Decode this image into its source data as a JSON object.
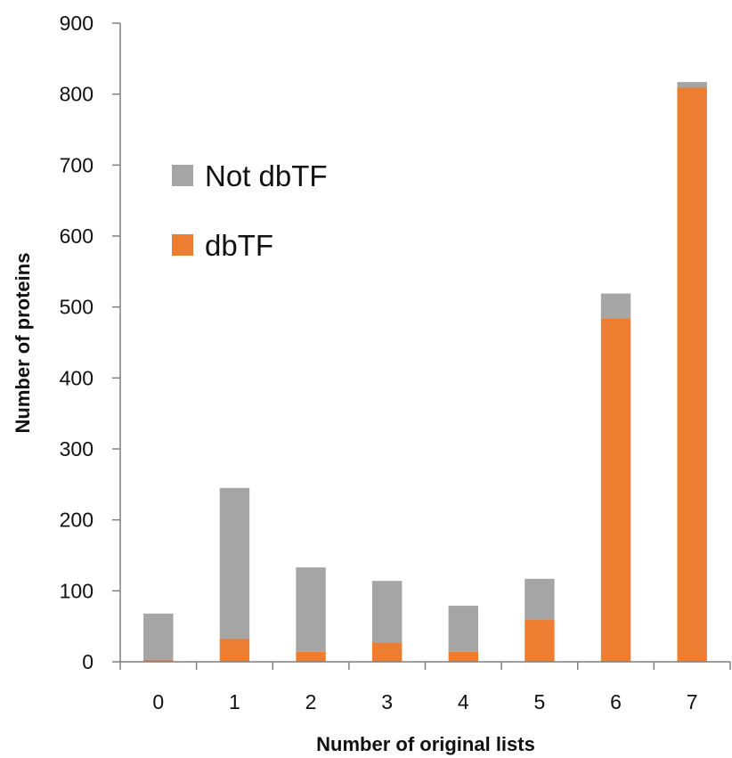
{
  "chart_data": {
    "type": "bar",
    "stacked": true,
    "categories": [
      "0",
      "1",
      "2",
      "3",
      "4",
      "5",
      "6",
      "7"
    ],
    "series": [
      {
        "name": "dbTF",
        "color": "#ED7D31",
        "values": [
          3,
          33,
          14,
          27,
          14,
          60,
          484,
          809
        ]
      },
      {
        "name": "Not dbTF",
        "color": "#A5A5A5",
        "values": [
          65,
          212,
          119,
          87,
          65,
          57,
          35,
          8
        ]
      }
    ],
    "xlabel": "Number of original lists",
    "ylabel": "Number of proteins",
    "ylim": [
      0,
      900
    ],
    "yticks": [
      0,
      100,
      200,
      300,
      400,
      500,
      600,
      700,
      800,
      900
    ],
    "grid": false,
    "legend_position": "upper-left-inside",
    "legend_order": [
      "Not dbTF",
      "dbTF"
    ]
  }
}
